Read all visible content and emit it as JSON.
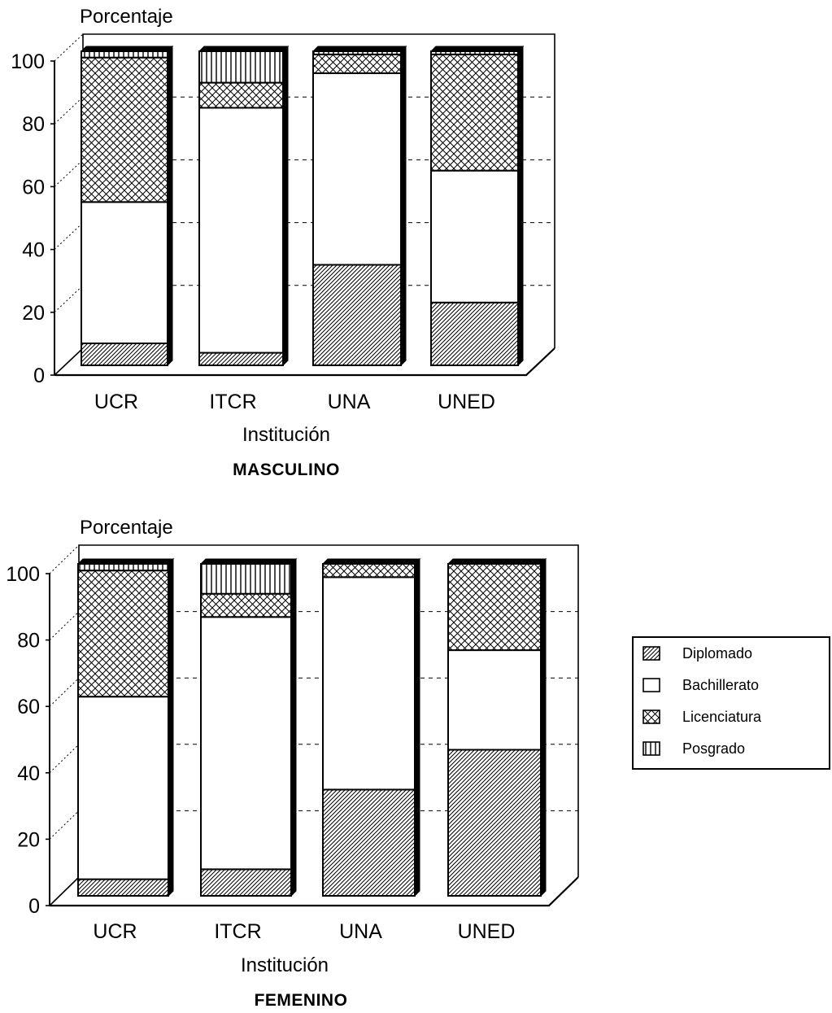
{
  "legend": [
    {
      "name": "Diplomado",
      "pattern": "diag"
    },
    {
      "name": "Bachillerato",
      "pattern": "plain"
    },
    {
      "name": "Licenciatura",
      "pattern": "cross"
    },
    {
      "name": "Posgrado",
      "pattern": "vert"
    }
  ],
  "chart_data": [
    {
      "type": "bar",
      "stacked": true,
      "three_d": true,
      "title": "MASCULINO",
      "xlabel": "Institución",
      "ylabel": "Porcentaje",
      "ylim": [
        0,
        100
      ],
      "yticks": [
        0,
        20,
        40,
        60,
        80,
        100
      ],
      "grid": true,
      "categories": [
        "UCR",
        "ITCR",
        "UNA",
        "UNED"
      ],
      "series": [
        {
          "name": "Diplomado",
          "values": [
            7,
            4,
            32,
            20
          ]
        },
        {
          "name": "Bachillerato",
          "values": [
            45,
            78,
            61,
            42
          ]
        },
        {
          "name": "Licenciatura",
          "values": [
            46,
            8,
            6,
            37
          ]
        },
        {
          "name": "Posgrado",
          "values": [
            2,
            10,
            1,
            1
          ]
        }
      ]
    },
    {
      "type": "bar",
      "stacked": true,
      "three_d": true,
      "title": "FEMENINO",
      "xlabel": "Institución",
      "ylabel": "Porcentaje",
      "ylim": [
        0,
        100
      ],
      "yticks": [
        0,
        20,
        40,
        60,
        80,
        100
      ],
      "grid": true,
      "legend_position": "right",
      "categories": [
        "UCR",
        "ITCR",
        "UNA",
        "UNED"
      ],
      "series": [
        {
          "name": "Diplomado",
          "values": [
            5,
            8,
            32,
            44
          ]
        },
        {
          "name": "Bachillerato",
          "values": [
            55,
            76,
            64,
            30
          ]
        },
        {
          "name": "Licenciatura",
          "values": [
            38,
            7,
            4,
            26
          ]
        },
        {
          "name": "Posgrado",
          "values": [
            2,
            9,
            0,
            0
          ]
        }
      ]
    }
  ]
}
